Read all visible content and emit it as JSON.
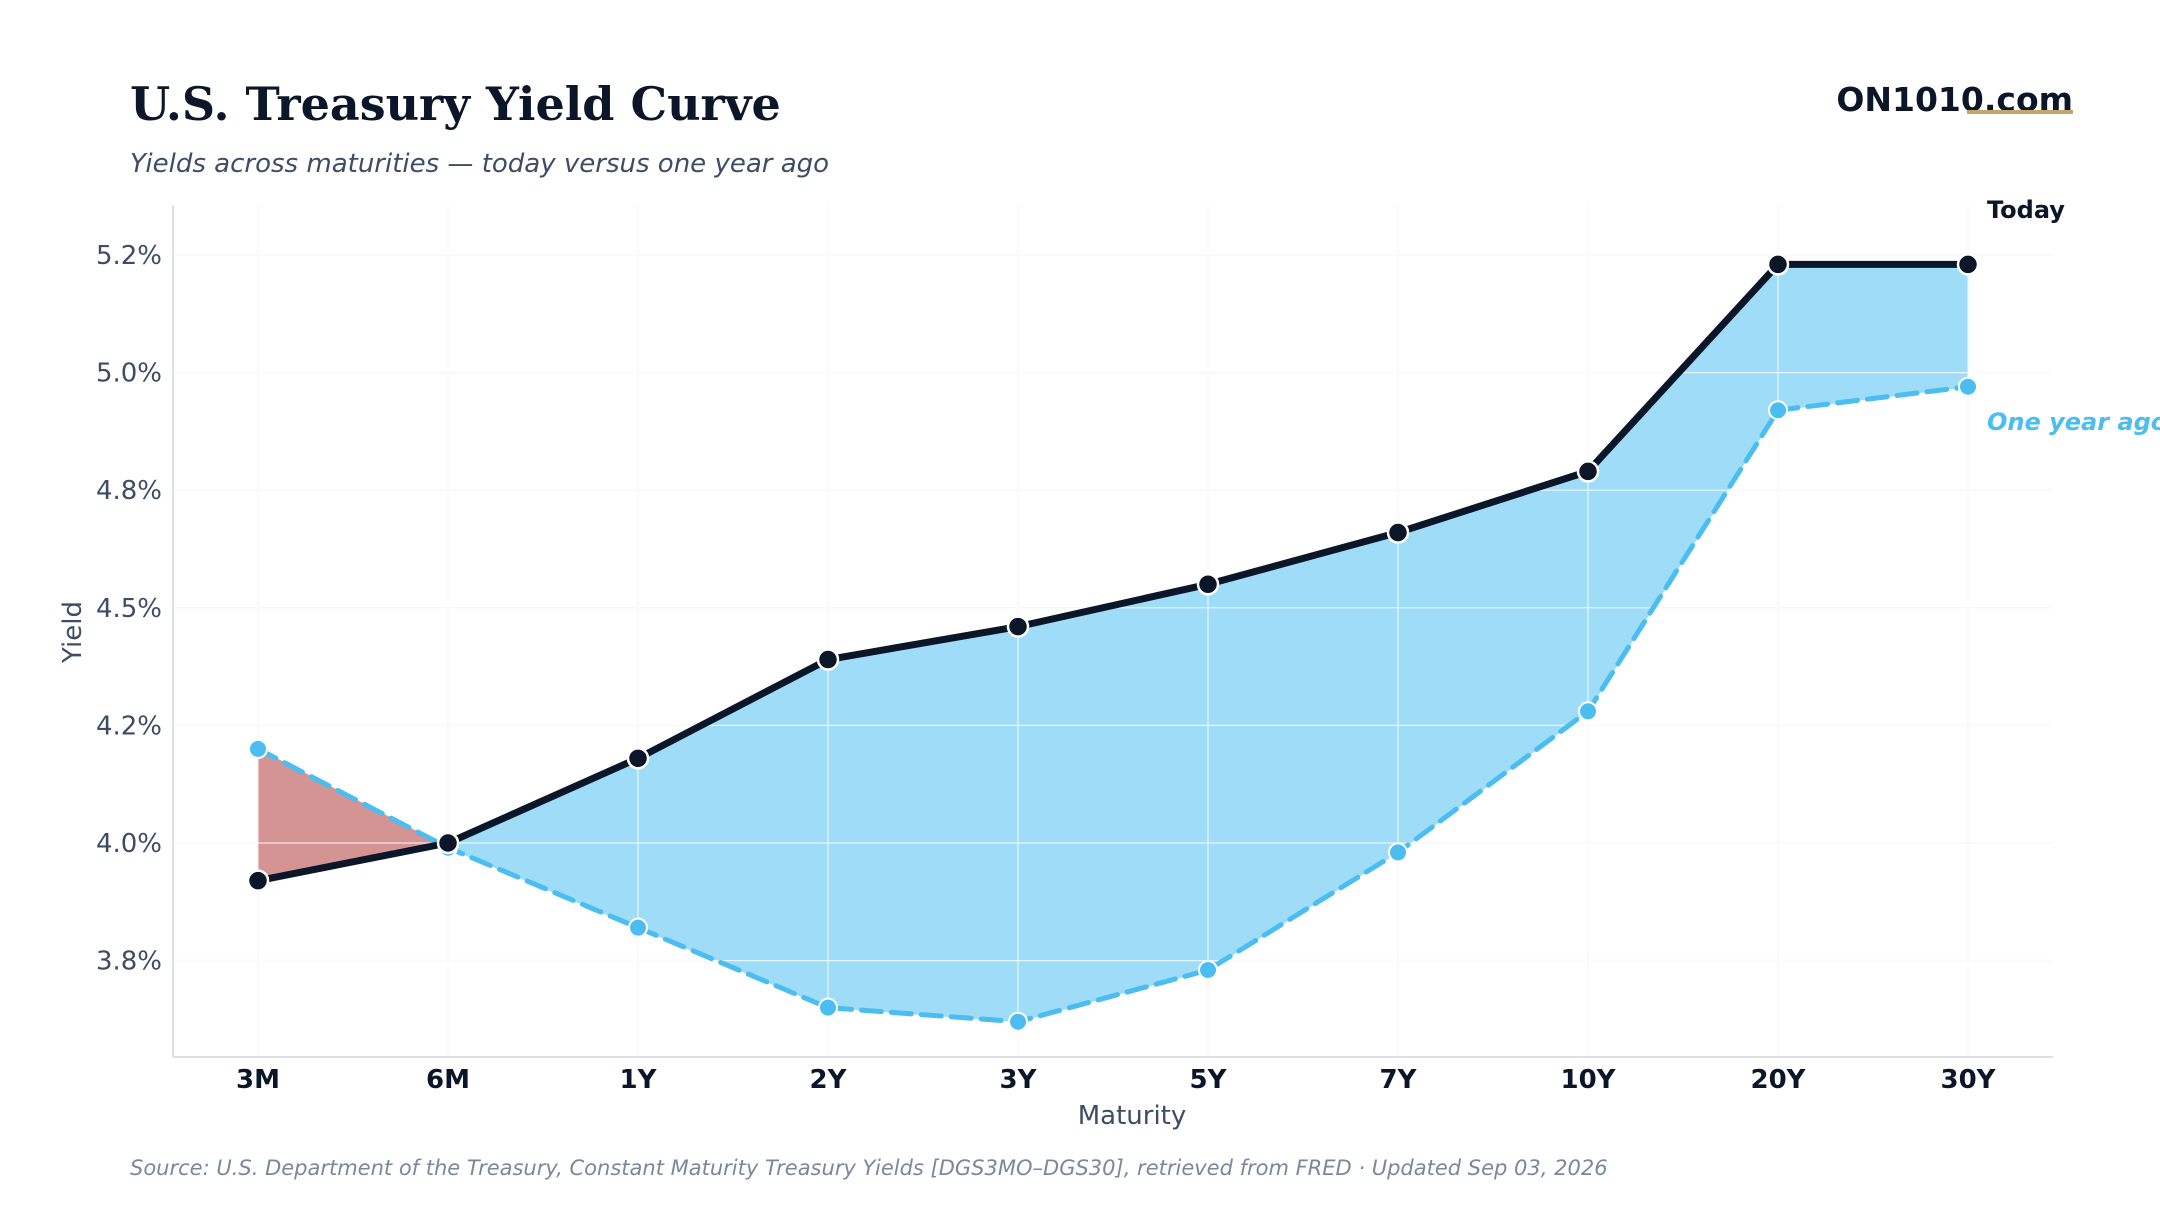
{
  "header": {
    "title": "U.S. Treasury Yield Curve",
    "subtitle": "Yields across maturities — today versus one year ago",
    "brand": "ON1010.com"
  },
  "footer": {
    "source": "Source: U.S. Department of the Treasury, Constant Maturity Treasury Yields [DGS3MO–DGS30], retrieved from FRED · Updated Sep 03, 2026"
  },
  "colors": {
    "today": "#0b1628",
    "one_year_ago": "#4bbdf0",
    "fill_higher": "#9fdcf7",
    "fill_inverted": "#d49494",
    "brand_underline": "#c4a56a",
    "grid": "#eef0f3",
    "axis": "#dcdfe4"
  },
  "chart_data": {
    "type": "line",
    "xlabel": "Maturity",
    "ylabel": "Yield",
    "categories": [
      "3M",
      "6M",
      "1Y",
      "2Y",
      "3Y",
      "5Y",
      "7Y",
      "10Y",
      "20Y",
      "30Y"
    ],
    "series": [
      {
        "name": "Today",
        "style": "solid",
        "values": [
          3.92,
          4.0,
          4.18,
          4.39,
          4.46,
          4.55,
          4.66,
          4.79,
          5.23,
          5.23
        ]
      },
      {
        "name": "One year ago",
        "style": "dashed",
        "values": [
          4.2,
          3.99,
          3.82,
          3.65,
          3.62,
          3.73,
          3.98,
          4.28,
          4.92,
          4.97
        ]
      }
    ],
    "ylim": [
      3.6,
      5.33
    ],
    "yticks": [
      3.75,
      4.0,
      4.25,
      4.5,
      4.75,
      5.0,
      5.25
    ],
    "ytick_labels": [
      "3.8%",
      "4.0%",
      "4.2%",
      "4.5%",
      "4.8%",
      "5.0%",
      "5.2%"
    ],
    "grid": true,
    "legend": "inline labels at right end of lines"
  }
}
